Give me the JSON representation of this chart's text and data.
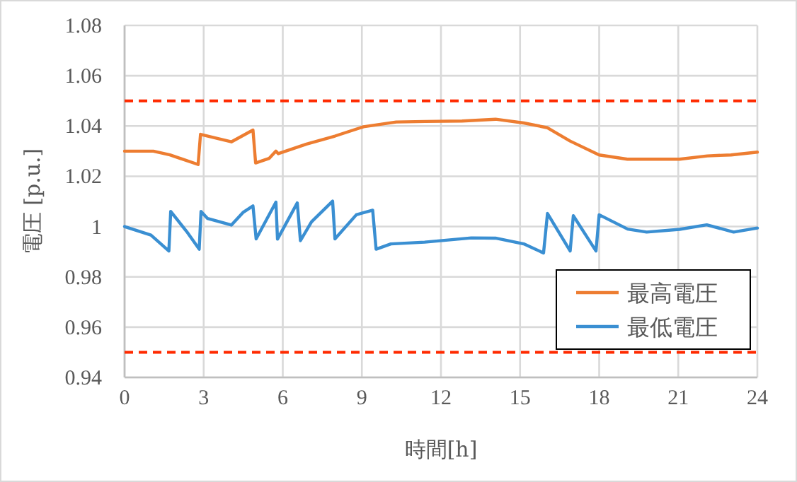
{
  "chart_data": {
    "type": "line",
    "xlabel": "時間[h]",
    "ylabel": "電圧 [p.u.]",
    "xlim": [
      0,
      24
    ],
    "xticks": [
      0,
      3,
      6,
      9,
      12,
      15,
      18,
      21,
      24
    ],
    "ylim": [
      0.94,
      1.08
    ],
    "yticks": [
      0.94,
      0.96,
      0.98,
      1,
      1.02,
      1.04,
      1.06,
      1.08
    ],
    "grid": true,
    "legend": "bottom right",
    "marker": "none",
    "line_style": "solid",
    "ref_lines": [
      {
        "axis": "y",
        "value": 1.05,
        "color": "#ff2a00",
        "line_style": "dashed"
      },
      {
        "axis": "y",
        "value": 0.95,
        "color": "#ff2a00",
        "line_style": "dashed"
      }
    ],
    "series": [
      {
        "name": "最高電圧",
        "color": "#ed7d31",
        "x": [
          0,
          1.09,
          1.72,
          2.79,
          2.88,
          4.05,
          4.87,
          4.97,
          5.48,
          5.74,
          5.83,
          6.9,
          7.98,
          9.06,
          10.3,
          11.4,
          12.8,
          14.07,
          15.14,
          16.04,
          16.9,
          18,
          19.07,
          21.05,
          22.1,
          23.0,
          24
        ],
        "values": [
          1.03,
          1.03,
          1.0285,
          1.0247,
          1.0367,
          1.0337,
          1.0384,
          1.0253,
          1.0271,
          1.03,
          1.029,
          1.0328,
          1.036,
          1.0397,
          1.0416,
          1.0418,
          1.042,
          1.0427,
          1.0412,
          1.0393,
          1.034,
          1.0285,
          1.0268,
          1.0268,
          1.0281,
          1.0285,
          1.0296
        ]
      },
      {
        "name": "最低電圧",
        "color": "#3a8fd2",
        "x": [
          0,
          1.0,
          1.68,
          1.75,
          2.35,
          2.83,
          2.9,
          3.15,
          4.05,
          4.49,
          4.87,
          4.99,
          5.74,
          5.8,
          6.55,
          6.67,
          7.09,
          7.89,
          7.98,
          8.79,
          9.41,
          9.54,
          10.1,
          11.38,
          13.15,
          14.07,
          15.14,
          15.89,
          16.04,
          16.9,
          17.02,
          17.88,
          18.0,
          19.08,
          19.8,
          21.05,
          22.08,
          23.1,
          24
        ],
        "values": [
          1.0,
          0.9966,
          0.9903,
          1.006,
          0.9981,
          0.991,
          1.006,
          1.0032,
          1.0006,
          1.0056,
          1.0082,
          0.9951,
          1.0097,
          0.995,
          1.0094,
          0.9944,
          1.0019,
          1.0101,
          0.9951,
          1.0047,
          1.0065,
          0.991,
          0.9931,
          0.9938,
          0.9955,
          0.9954,
          0.9931,
          0.9895,
          1.0052,
          0.9903,
          1.0043,
          0.9903,
          1.0047,
          0.999,
          0.9978,
          0.9989,
          1.0007,
          0.9978,
          0.9994
        ]
      }
    ]
  }
}
